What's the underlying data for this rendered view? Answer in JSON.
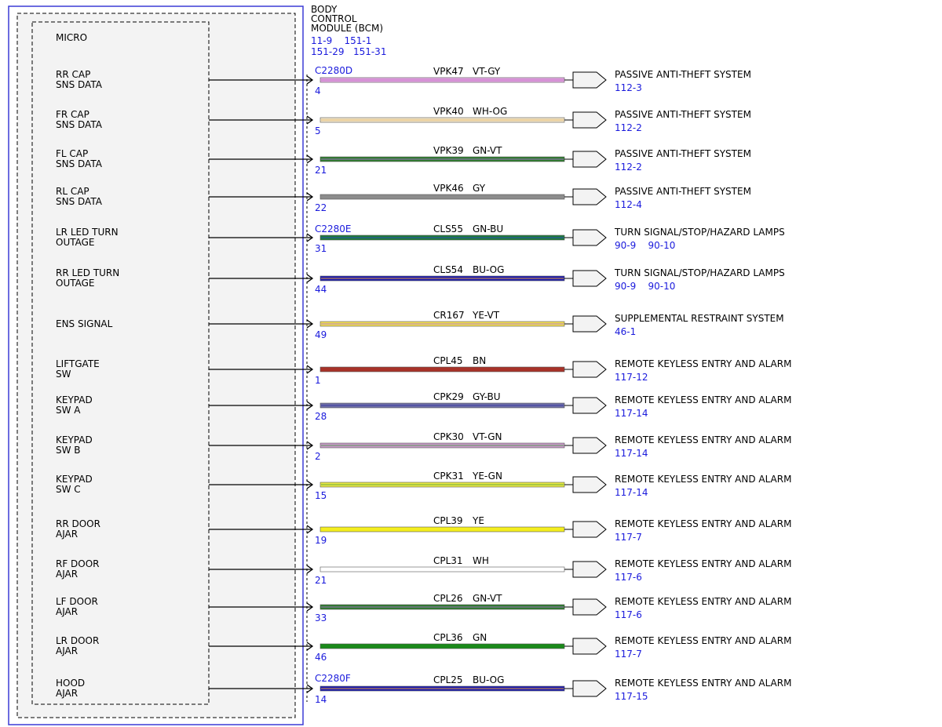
{
  "module": {
    "title_lines": [
      "BODY",
      "CONTROL",
      "MODULE (BCM)"
    ],
    "refs": [
      "11-9    151-1",
      "151-29   151-31"
    ],
    "inner_label": "MICRO"
  },
  "colors": {
    "module_border": "#3b3bd6",
    "inner_fill": "#f3f3f3",
    "link_text": "#1a1adc"
  },
  "wires": [
    {
      "signal": [
        "RR CAP",
        "SNS DATA"
      ],
      "connector": "C2280D",
      "pin": "4",
      "circuit": "VPK47",
      "wire_color": "VT-GY",
      "fill": "#e3a6e3",
      "core": "#c070c0",
      "dest": "PASSIVE ANTI-THEFT SYSTEM",
      "ref": "112-3"
    },
    {
      "signal": [
        "FR CAP",
        "SNS DATA"
      ],
      "connector": "",
      "pin": "5",
      "circuit": "VPK40",
      "wire_color": "WH-OG",
      "fill": "#f2e4c6",
      "core": "#e0b870",
      "dest": "PASSIVE ANTI-THEFT SYSTEM",
      "ref": "112-2"
    },
    {
      "signal": [
        "FL CAP",
        "SNS DATA"
      ],
      "connector": "",
      "pin": "21",
      "circuit": "VPK39",
      "wire_color": "GN-VT",
      "fill": "#2e7d2e",
      "core": "#a070c0",
      "dest": "PASSIVE ANTI-THEFT SYSTEM",
      "ref": "112-2"
    },
    {
      "signal": [
        "RL CAP",
        "SNS DATA"
      ],
      "connector": "",
      "pin": "22",
      "circuit": "VPK46",
      "wire_color": "GY",
      "fill": "#8c8c8c",
      "core": "#8c8c8c",
      "dest": "PASSIVE ANTI-THEFT SYSTEM",
      "ref": "112-4"
    },
    {
      "signal": [
        "LR LED TURN",
        "OUTAGE"
      ],
      "connector": "C2280E",
      "pin": "31",
      "circuit": "CLS55",
      "wire_color": "GN-BU",
      "fill": "#1f7a3a",
      "core": "#2a4fb8",
      "dest": "TURN SIGNAL/STOP/HAZARD LAMPS",
      "ref": "90-9    90-10"
    },
    {
      "signal": [
        "RR LED TURN",
        "OUTAGE"
      ],
      "connector": "",
      "pin": "44",
      "circuit": "CLS54",
      "wire_color": "BU-OG",
      "fill": "#1c1cb0",
      "core": "#e09a40",
      "dest": "TURN SIGNAL/STOP/HAZARD LAMPS",
      "ref": "90-9    90-10"
    },
    {
      "signal": [
        "ENS SIGNAL"
      ],
      "connector": "",
      "pin": "49",
      "circuit": "CR167",
      "wire_color": "YE-VT",
      "fill": "#f2dd55",
      "core": "#b080c0",
      "dest": "SUPPLEMENTAL RESTRAINT SYSTEM",
      "ref": "46-1"
    },
    {
      "signal": [
        "LIFTGATE",
        "SW"
      ],
      "connector": "",
      "pin": "1",
      "circuit": "CPL45",
      "wire_color": "BN",
      "fill": "#a83228",
      "core": "#a83228",
      "dest": "REMOTE KEYLESS ENTRY AND ALARM",
      "ref": "117-12"
    },
    {
      "signal": [
        "KEYPAD",
        "SW A"
      ],
      "connector": "",
      "pin": "28",
      "circuit": "CPK29",
      "wire_color": "GY-BU",
      "fill": "#7070a8",
      "core": "#3a3aa0",
      "dest": "REMOTE KEYLESS ENTRY AND ALARM",
      "ref": "117-14"
    },
    {
      "signal": [
        "KEYPAD",
        "SW B"
      ],
      "connector": "",
      "pin": "2",
      "circuit": "CPK30",
      "wire_color": "VT-GN",
      "fill": "#c89ac8",
      "core": "#5a9a5a",
      "dest": "REMOTE KEYLESS ENTRY AND ALARM",
      "ref": "117-14"
    },
    {
      "signal": [
        "KEYPAD",
        "SW C"
      ],
      "connector": "",
      "pin": "15",
      "circuit": "CPK31",
      "wire_color": "YE-GN",
      "fill": "#e8e845",
      "core": "#6aa83a",
      "dest": "REMOTE KEYLESS ENTRY AND ALARM",
      "ref": "117-14"
    },
    {
      "signal": [
        "RR DOOR",
        "AJAR"
      ],
      "connector": "",
      "pin": "19",
      "circuit": "CPL39",
      "wire_color": "YE",
      "fill": "#f4ee1e",
      "core": "#f4ee1e",
      "dest": "REMOTE KEYLESS ENTRY AND ALARM",
      "ref": "117-7"
    },
    {
      "signal": [
        "RF DOOR",
        "AJAR"
      ],
      "connector": "",
      "pin": "21",
      "circuit": "CPL31",
      "wire_color": "WH",
      "fill": "#ffffff",
      "core": "#ffffff",
      "dest": "REMOTE KEYLESS ENTRY AND ALARM",
      "ref": "117-6"
    },
    {
      "signal": [
        "LF DOOR",
        "AJAR"
      ],
      "connector": "",
      "pin": "33",
      "circuit": "CPL26",
      "wire_color": "GN-VT",
      "fill": "#2e7d2e",
      "core": "#a070c0",
      "dest": "REMOTE KEYLESS ENTRY AND ALARM",
      "ref": "117-6"
    },
    {
      "signal": [
        "LR DOOR",
        "AJAR"
      ],
      "connector": "",
      "pin": "46",
      "circuit": "CPL36",
      "wire_color": "GN",
      "fill": "#1a8a1a",
      "core": "#1a8a1a",
      "dest": "REMOTE KEYLESS ENTRY AND ALARM",
      "ref": "117-7"
    },
    {
      "signal": [
        "HOOD",
        "AJAR"
      ],
      "connector": "C2280F",
      "pin": "14",
      "circuit": "CPL25",
      "wire_color": "BU-OG",
      "fill": "#1c1cb0",
      "core": "#e09a40",
      "dest": "REMOTE KEYLESS ENTRY AND ALARM",
      "ref": "117-15"
    }
  ]
}
